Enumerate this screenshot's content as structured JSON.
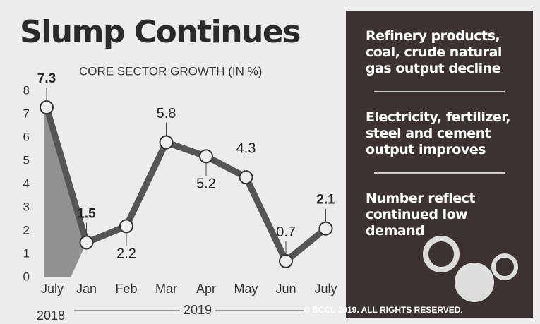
{
  "chart_data": {
    "type": "line",
    "title": "Slump Continues",
    "subtitle": "CORE SECTOR GROWTH (IN %)",
    "categories": [
      "July",
      "Jan",
      "Feb",
      "Mar",
      "Apr",
      "May",
      "Jun",
      "July"
    ],
    "values": [
      7.3,
      1.5,
      2.2,
      5.8,
      5.2,
      4.3,
      0.7,
      2.1
    ],
    "color": "#555555",
    "ylim": [
      0,
      8
    ],
    "yticks": [
      0,
      1,
      2,
      3,
      4,
      5,
      6,
      7,
      8
    ],
    "grid": false,
    "period_labels": [
      "2018",
      "2019"
    ],
    "annotations": [
      "Refinery products, coal, crude natural gas output decline",
      "Electricity, fertilizer, steel and cement output improves",
      "Number reflect continued low demand"
    ],
    "credit": "© BCCL 2019. ALL RIGHTS RESERVED."
  }
}
